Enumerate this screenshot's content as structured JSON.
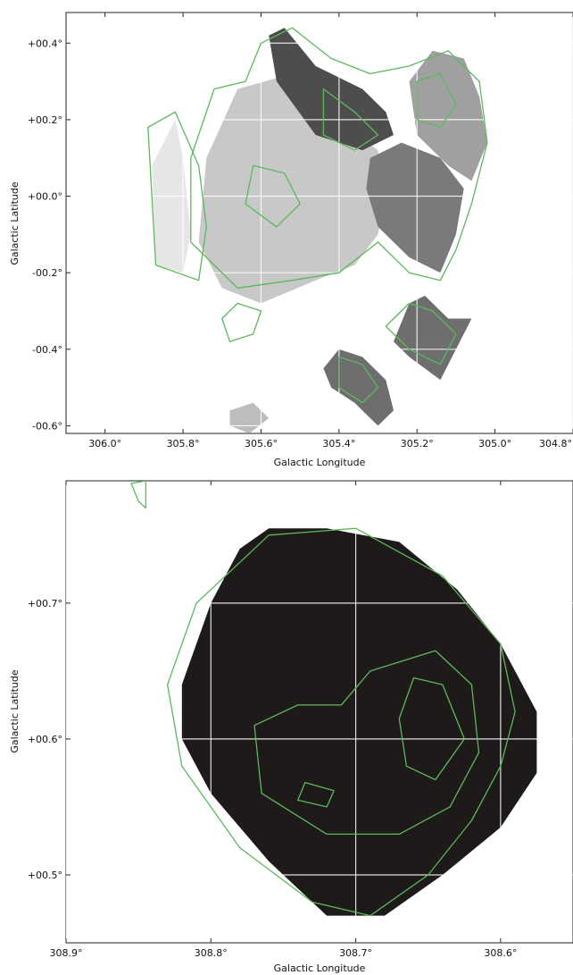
{
  "chart_data": [
    {
      "type": "heatmap",
      "xlabel": "Galactic Longitude",
      "ylabel": "Galactic Latitude",
      "xlim": [
        306.1,
        304.8
      ],
      "ylim": [
        -0.62,
        0.48
      ],
      "x_ticks": [
        {
          "value": 306.0,
          "label": "306.0°"
        },
        {
          "value": 305.8,
          "label": "305.8°"
        },
        {
          "value": 305.6,
          "label": "305.6°"
        },
        {
          "value": 305.4,
          "label": "305.4°"
        },
        {
          "value": 305.2,
          "label": "305.2°"
        },
        {
          "value": 305.0,
          "label": "305.0°"
        },
        {
          "value": 304.8,
          "label": "304.8°"
        }
      ],
      "y_ticks": [
        {
          "value": 0.4,
          "label": "+00.4°"
        },
        {
          "value": 0.2,
          "label": "+00.2°"
        },
        {
          "value": 0.0,
          "label": "+00.0°"
        },
        {
          "value": -0.2,
          "label": "-00.2°"
        },
        {
          "value": -0.4,
          "label": "-00.4°"
        },
        {
          "value": -0.6,
          "label": "-00.6°"
        }
      ],
      "grid": true,
      "contour_color": "#5cb85c",
      "regions": [
        {
          "shade": "#e6e6e6",
          "points": [
            [
              305.88,
              0.08
            ],
            [
              305.87,
              -0.18
            ],
            [
              305.8,
              -0.2
            ],
            [
              305.78,
              -0.1
            ],
            [
              305.8,
              0.1
            ],
            [
              305.82,
              0.2
            ]
          ]
        },
        {
          "shade": "#c8c8c8",
          "points": [
            [
              305.76,
              -0.12
            ],
            [
              305.74,
              0.1
            ],
            [
              305.66,
              0.28
            ],
            [
              305.52,
              0.32
            ],
            [
              305.44,
              0.26
            ],
            [
              305.38,
              0.18
            ],
            [
              305.3,
              0.12
            ],
            [
              305.28,
              0.02
            ],
            [
              305.3,
              -0.1
            ],
            [
              305.36,
              -0.18
            ],
            [
              305.46,
              -0.22
            ],
            [
              305.6,
              -0.28
            ],
            [
              305.7,
              -0.24
            ]
          ]
        },
        {
          "shade": "#4d4d4d",
          "points": [
            [
              305.58,
              0.42
            ],
            [
              305.54,
              0.44
            ],
            [
              305.46,
              0.34
            ],
            [
              305.34,
              0.28
            ],
            [
              305.28,
              0.22
            ],
            [
              305.26,
              0.16
            ],
            [
              305.34,
              0.12
            ],
            [
              305.46,
              0.16
            ],
            [
              305.56,
              0.3
            ]
          ]
        },
        {
          "shade": "#7a7a7a",
          "points": [
            [
              305.33,
              0.02
            ],
            [
              305.32,
              0.1
            ],
            [
              305.24,
              0.14
            ],
            [
              305.14,
              0.1
            ],
            [
              305.08,
              0.02
            ],
            [
              305.1,
              -0.1
            ],
            [
              305.14,
              -0.2
            ],
            [
              305.22,
              -0.16
            ],
            [
              305.3,
              -0.08
            ]
          ]
        },
        {
          "shade": "#a0a0a0",
          "points": [
            [
              305.22,
              0.3
            ],
            [
              305.16,
              0.38
            ],
            [
              305.08,
              0.36
            ],
            [
              305.04,
              0.26
            ],
            [
              305.02,
              0.14
            ],
            [
              305.06,
              0.04
            ],
            [
              305.12,
              0.08
            ],
            [
              305.2,
              0.16
            ]
          ]
        },
        {
          "shade": "#6e6e6e",
          "points": [
            [
              305.26,
              -0.38
            ],
            [
              305.22,
              -0.28
            ],
            [
              305.18,
              -0.26
            ],
            [
              305.12,
              -0.32
            ],
            [
              305.06,
              -0.32
            ],
            [
              305.1,
              -0.4
            ],
            [
              305.14,
              -0.48
            ],
            [
              305.22,
              -0.42
            ]
          ]
        },
        {
          "shade": "#6e6e6e",
          "points": [
            [
              305.44,
              -0.45
            ],
            [
              305.4,
              -0.4
            ],
            [
              305.34,
              -0.42
            ],
            [
              305.28,
              -0.48
            ],
            [
              305.26,
              -0.56
            ],
            [
              305.3,
              -0.6
            ],
            [
              305.36,
              -0.54
            ],
            [
              305.42,
              -0.5
            ]
          ]
        },
        {
          "shade": "#bdbdbd",
          "points": [
            [
              305.68,
              -0.56
            ],
            [
              305.62,
              -0.54
            ],
            [
              305.58,
              -0.58
            ],
            [
              305.63,
              -0.62
            ],
            [
              305.68,
              -0.6
            ]
          ]
        }
      ],
      "contours": [
        {
          "closed": true,
          "points": [
            [
              305.89,
              0.18
            ],
            [
              305.87,
              -0.18
            ],
            [
              305.76,
              -0.22
            ],
            [
              305.74,
              -0.08
            ],
            [
              305.76,
              0.08
            ],
            [
              305.82,
              0.22
            ]
          ]
        },
        {
          "closed": true,
          "points": [
            [
              305.78,
              0.1
            ],
            [
              305.78,
              -0.12
            ],
            [
              305.66,
              -0.24
            ],
            [
              305.52,
              -0.22
            ],
            [
              305.4,
              -0.2
            ],
            [
              305.3,
              -0.12
            ],
            [
              305.22,
              -0.2
            ],
            [
              305.14,
              -0.22
            ],
            [
              305.1,
              -0.14
            ],
            [
              305.06,
              -0.02
            ],
            [
              305.02,
              0.14
            ],
            [
              305.04,
              0.3
            ],
            [
              305.12,
              0.38
            ],
            [
              305.22,
              0.34
            ],
            [
              305.32,
              0.32
            ],
            [
              305.42,
              0.36
            ],
            [
              305.52,
              0.44
            ],
            [
              305.6,
              0.4
            ],
            [
              305.64,
              0.3
            ],
            [
              305.72,
              0.28
            ]
          ]
        },
        {
          "closed": true,
          "points": [
            [
              305.44,
              0.28
            ],
            [
              305.36,
              0.22
            ],
            [
              305.3,
              0.16
            ],
            [
              305.36,
              0.12
            ],
            [
              305.44,
              0.16
            ]
          ]
        },
        {
          "closed": true,
          "points": [
            [
              305.62,
              0.08
            ],
            [
              305.64,
              -0.02
            ],
            [
              305.56,
              -0.08
            ],
            [
              305.5,
              -0.02
            ],
            [
              305.54,
              0.06
            ]
          ]
        },
        {
          "closed": true,
          "points": [
            [
              305.2,
              0.3
            ],
            [
              305.14,
              0.32
            ],
            [
              305.1,
              0.24
            ],
            [
              305.14,
              0.18
            ],
            [
              305.2,
              0.2
            ]
          ]
        },
        {
          "closed": true,
          "points": [
            [
              305.7,
              -0.32
            ],
            [
              305.66,
              -0.28
            ],
            [
              305.6,
              -0.3
            ],
            [
              305.62,
              -0.36
            ],
            [
              305.68,
              -0.38
            ]
          ]
        },
        {
          "closed": true,
          "points": [
            [
              305.28,
              -0.34
            ],
            [
              305.22,
              -0.28
            ],
            [
              305.16,
              -0.3
            ],
            [
              305.1,
              -0.36
            ],
            [
              305.14,
              -0.44
            ],
            [
              305.22,
              -0.4
            ]
          ]
        },
        {
          "closed": true,
          "points": [
            [
              305.4,
              -0.42
            ],
            [
              305.34,
              -0.44
            ],
            [
              305.3,
              -0.5
            ],
            [
              305.34,
              -0.54
            ],
            [
              305.4,
              -0.5
            ]
          ]
        }
      ]
    },
    {
      "type": "heatmap",
      "xlabel": "Galactic Longitude",
      "ylabel": "Galactic Latitude",
      "xlim": [
        308.9,
        308.55
      ],
      "ylim": [
        0.45,
        0.79
      ],
      "x_ticks": [
        {
          "value": 308.9,
          "label": "308.9°"
        },
        {
          "value": 308.8,
          "label": "308.8°"
        },
        {
          "value": 308.7,
          "label": "308.7°"
        },
        {
          "value": 308.6,
          "label": "308.6°"
        }
      ],
      "y_ticks": [
        {
          "value": 0.7,
          "label": "+00.7°"
        },
        {
          "value": 0.6,
          "label": "+00.6°"
        },
        {
          "value": 0.5,
          "label": "+00.5°"
        }
      ],
      "grid": true,
      "contour_color": "#5cb85c",
      "regions": [
        {
          "shade": "#1e1a1a",
          "points": [
            [
              308.76,
              0.755
            ],
            [
              308.72,
              0.755
            ],
            [
              308.67,
              0.745
            ],
            [
              308.63,
              0.71
            ],
            [
              308.6,
              0.67
            ],
            [
              308.575,
              0.62
            ],
            [
              308.575,
              0.575
            ],
            [
              308.6,
              0.535
            ],
            [
              308.64,
              0.5
            ],
            [
              308.68,
              0.47
            ],
            [
              308.72,
              0.47
            ],
            [
              308.76,
              0.51
            ],
            [
              308.8,
              0.56
            ],
            [
              308.82,
              0.6
            ],
            [
              308.82,
              0.64
            ],
            [
              308.8,
              0.7
            ],
            [
              308.78,
              0.74
            ]
          ]
        }
      ],
      "contours": [
        {
          "closed": true,
          "points": [
            [
              308.76,
              0.75
            ],
            [
              308.7,
              0.755
            ],
            [
              308.64,
              0.72
            ],
            [
              308.6,
              0.67
            ],
            [
              308.59,
              0.62
            ],
            [
              308.6,
              0.58
            ],
            [
              308.62,
              0.54
            ],
            [
              308.65,
              0.5
            ],
            [
              308.69,
              0.47
            ],
            [
              308.73,
              0.48
            ],
            [
              308.78,
              0.52
            ],
            [
              308.82,
              0.58
            ],
            [
              308.83,
              0.64
            ],
            [
              308.81,
              0.7
            ]
          ]
        },
        {
          "closed": true,
          "points": [
            [
              308.69,
              0.65
            ],
            [
              308.645,
              0.665
            ],
            [
              308.62,
              0.64
            ],
            [
              308.615,
              0.59
            ],
            [
              308.635,
              0.55
            ],
            [
              308.67,
              0.53
            ],
            [
              308.72,
              0.53
            ],
            [
              308.765,
              0.56
            ],
            [
              308.77,
              0.61
            ],
            [
              308.74,
              0.625
            ],
            [
              308.71,
              0.625
            ]
          ]
        },
        {
          "closed": true,
          "points": [
            [
              308.66,
              0.645
            ],
            [
              308.64,
              0.64
            ],
            [
              308.625,
              0.6
            ],
            [
              308.645,
              0.57
            ],
            [
              308.665,
              0.58
            ],
            [
              308.67,
              0.615
            ]
          ]
        },
        {
          "closed": true,
          "points": [
            [
              308.735,
              0.568
            ],
            [
              308.715,
              0.562
            ],
            [
              308.72,
              0.55
            ],
            [
              308.74,
              0.555
            ]
          ]
        },
        {
          "closed": true,
          "points": [
            [
              308.855,
              0.788
            ],
            [
              308.845,
              0.79
            ],
            [
              308.845,
              0.77
            ],
            [
              308.85,
              0.775
            ]
          ]
        }
      ]
    }
  ]
}
